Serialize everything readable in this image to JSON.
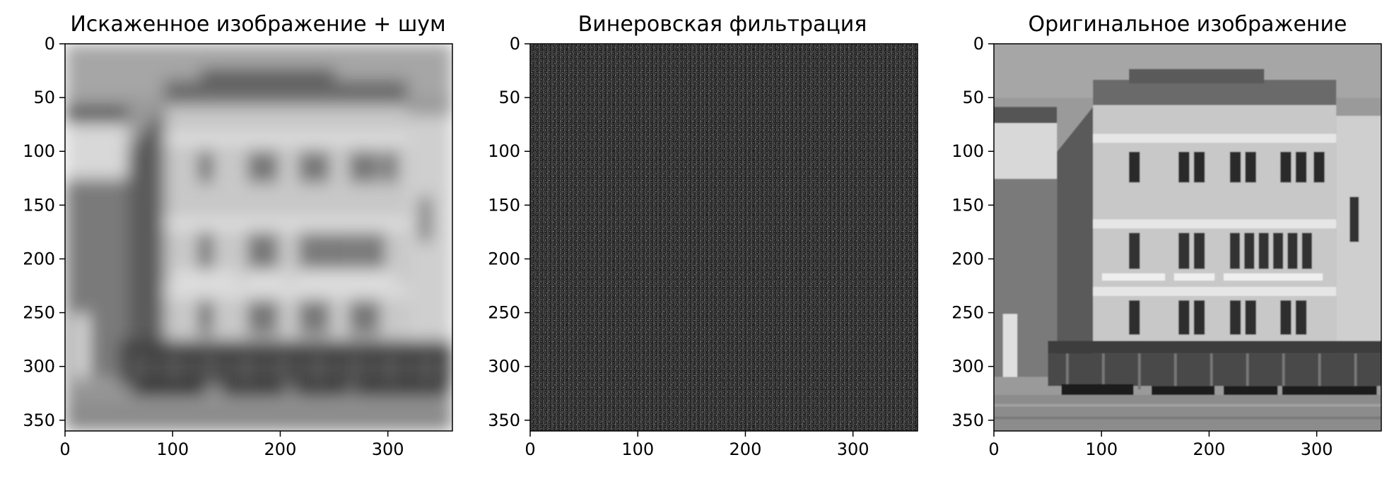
{
  "panels": [
    {
      "id": "degraded",
      "title": "Искаженное изображение + шум",
      "xticks": [
        0,
        100,
        200,
        300
      ],
      "yticks": [
        0,
        50,
        100,
        150,
        200,
        250,
        300,
        350
      ]
    },
    {
      "id": "wiener",
      "title": "Винеровская фильтрация",
      "xticks": [
        0,
        100,
        200,
        300
      ],
      "yticks": [
        0,
        50,
        100,
        150,
        200,
        250,
        300,
        350
      ]
    },
    {
      "id": "original",
      "title": "Оригинальное изображение",
      "xticks": [
        0,
        100,
        200,
        300
      ],
      "yticks": [
        0,
        50,
        100,
        150,
        200,
        250,
        300,
        350
      ]
    }
  ],
  "image_extent": [
    0,
    360
  ],
  "colormap": "gray"
}
